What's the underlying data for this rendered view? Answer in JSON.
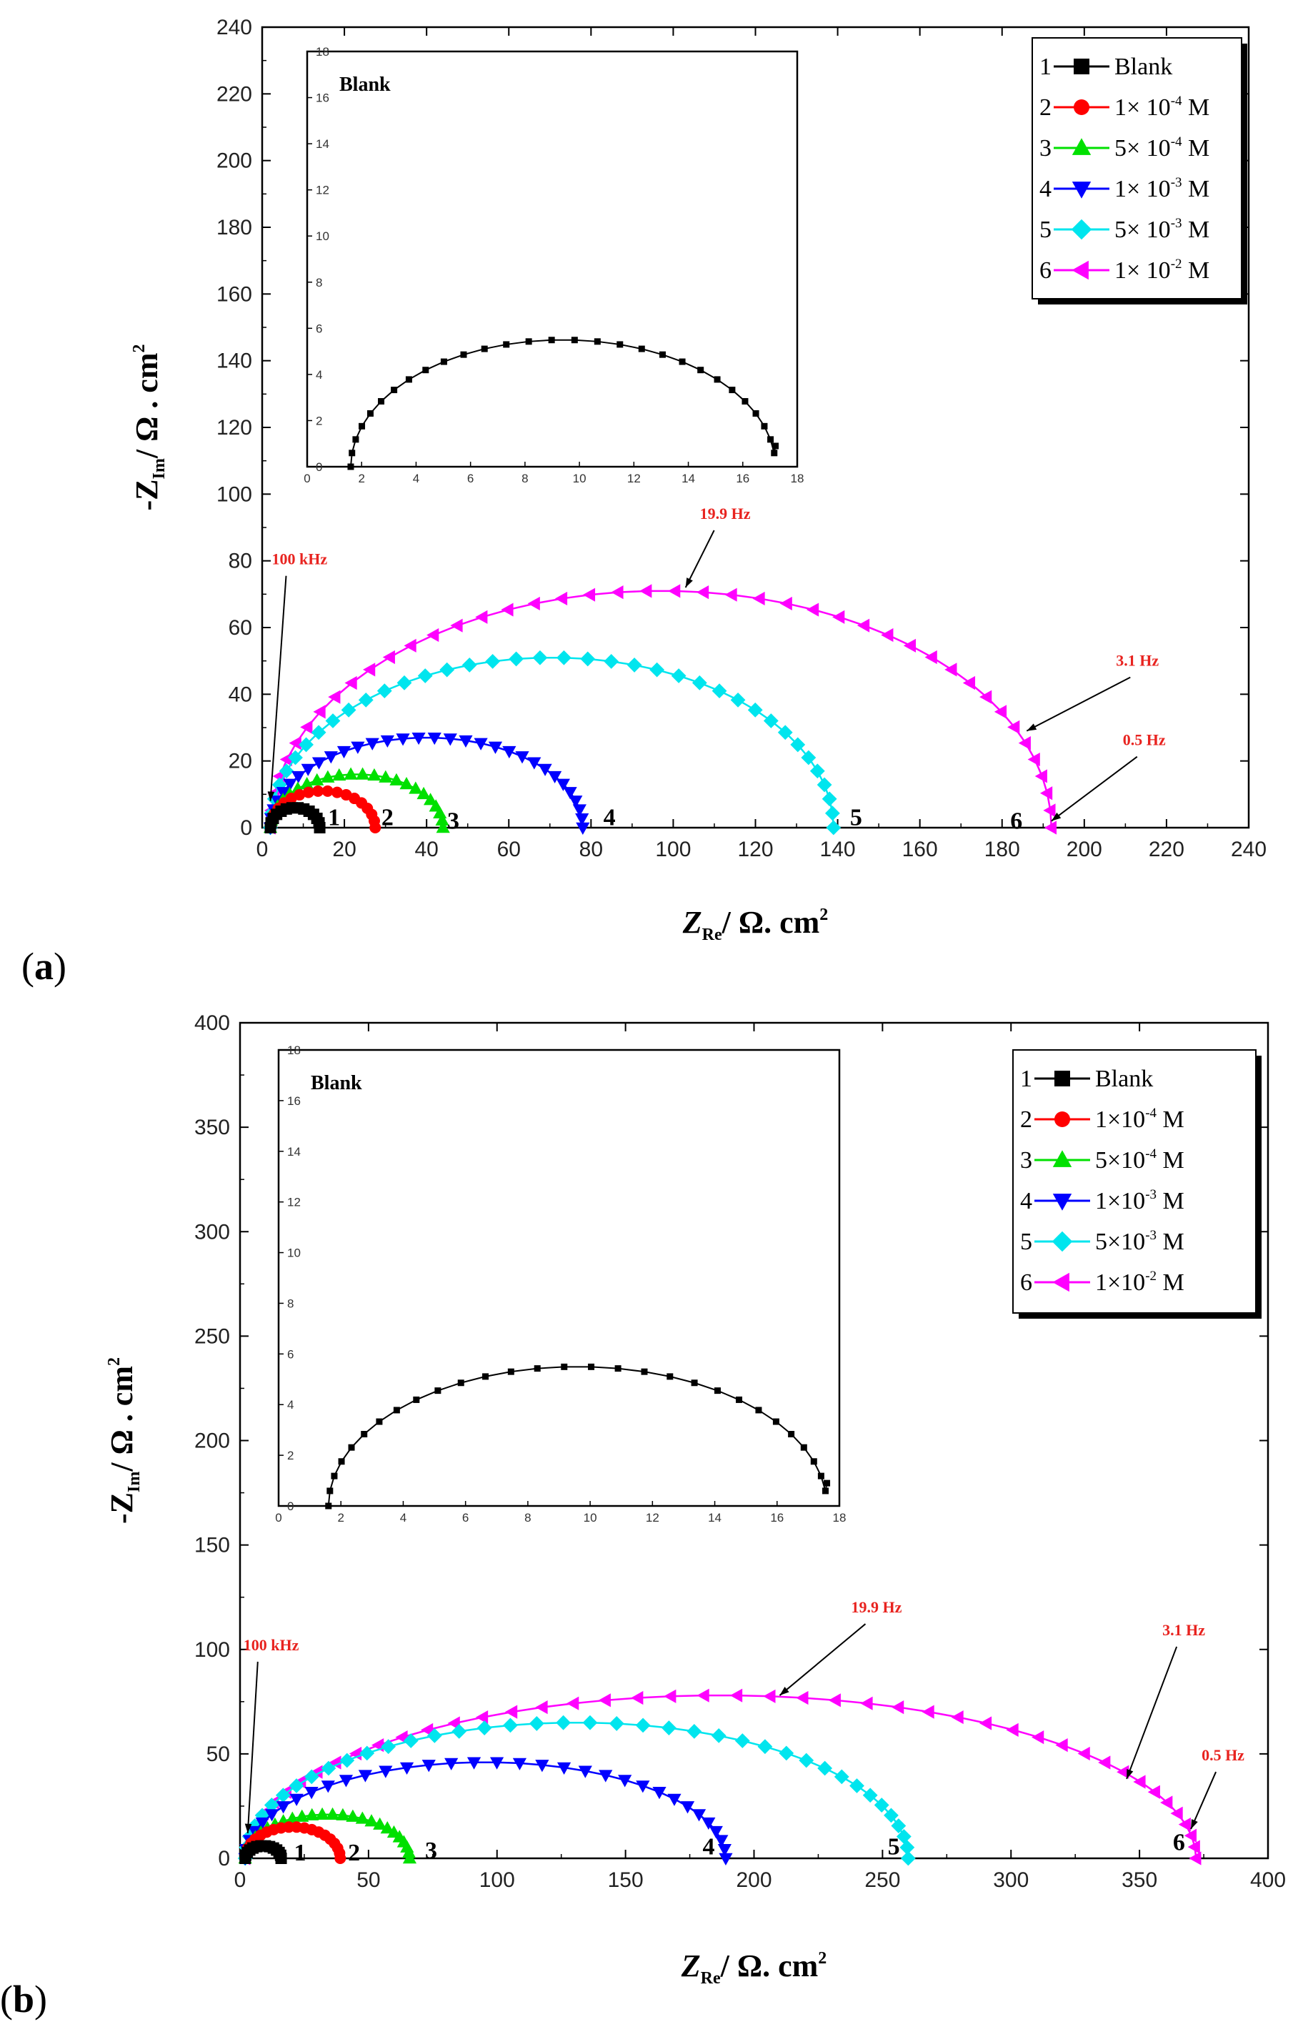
{
  "chart_data": [
    {
      "panel": "(a)",
      "panel_letter": "a",
      "type": "scatter",
      "subtype": "nyquist",
      "xlabel_main": "Z",
      "xlabel_sub": "Re",
      "xlabel_unit": "/ Ω. cm",
      "xlabel_pow": "2",
      "ylabel_main": "-Z",
      "ylabel_sub": "Im",
      "ylabel_unit": "/ Ω . cm",
      "ylabel_pow": "2",
      "xlim": [
        0,
        240
      ],
      "ylim": [
        0,
        240
      ],
      "xticks": [
        "0",
        "20",
        "40",
        "60",
        "80",
        "100",
        "120",
        "140",
        "160",
        "180",
        "200",
        "220",
        "240"
      ],
      "yticks": [
        "0",
        "20",
        "40",
        "60",
        "80",
        "100",
        "120",
        "140",
        "160",
        "180",
        "200",
        "220",
        "240"
      ],
      "series": [
        {
          "name": "Blank",
          "curve_label": "1",
          "color": "#000000",
          "marker": "square",
          "rs": 2,
          "rct": 12,
          "peak": 6,
          "n": 14
        },
        {
          "name": "1× 10⁻⁴ M",
          "curve_label": "2",
          "color": "#ff0000",
          "marker": "circle",
          "rs": 2,
          "rct": 25.5,
          "peak": 11,
          "n": 18
        },
        {
          "name": "5× 10⁻⁴ M",
          "curve_label": "3",
          "color": "#00e000",
          "marker": "triangle-up",
          "rs": 2,
          "rct": 42,
          "peak": 16,
          "n": 24
        },
        {
          "name": "1× 10⁻³ M",
          "curve_label": "4",
          "color": "#0000ff",
          "marker": "triangle-down",
          "rs": 2,
          "rct": 76,
          "peak": 27,
          "n": 32
        },
        {
          "name": "5× 10⁻³ M",
          "curve_label": "5",
          "color": "#00e5ee",
          "marker": "diamond",
          "rs": 2,
          "rct": 137,
          "peak": 51,
          "n": 38
        },
        {
          "name": "1× 10⁻² M",
          "curve_label": "6",
          "color": "#ff00ff",
          "marker": "triangle-left",
          "rs": 2,
          "rct": 190,
          "peak": 71,
          "n": 44
        }
      ],
      "legend": [
        {
          "num": "1",
          "text": "Blank",
          "exp": ""
        },
        {
          "num": "2",
          "text": "1× 10",
          "exp": "-4",
          "unit": " M"
        },
        {
          "num": "3",
          "text": "5× 10",
          "exp": "-4",
          "unit": " M"
        },
        {
          "num": "4",
          "text": "1× 10",
          "exp": "-3",
          "unit": " M"
        },
        {
          "num": "5",
          "text": "5× 10",
          "exp": "-3",
          "unit": " M"
        },
        {
          "num": "6",
          "text": "1× 10",
          "exp": "-2",
          "unit": " M"
        }
      ],
      "annotations": [
        {
          "text": "100 kHz",
          "x": 2,
          "y": 8
        },
        {
          "text": "19.9 Hz",
          "x": 103,
          "y": 72
        },
        {
          "text": "3.1 Hz",
          "x": 186,
          "y": 29
        },
        {
          "text": "0.5 Hz",
          "x": 192,
          "y": 2
        }
      ],
      "curve_label_positions": [
        {
          "label": "1",
          "x": 16,
          "y": 2
        },
        {
          "label": "2",
          "x": 29,
          "y": 2
        },
        {
          "label": "3",
          "x": 45,
          "y": 1
        },
        {
          "label": "4",
          "x": 83,
          "y": 2
        },
        {
          "label": "5",
          "x": 143,
          "y": 2
        },
        {
          "label": "6",
          "x": 182,
          "y": 1
        }
      ],
      "inset": {
        "title": "Blank",
        "xlim": [
          0,
          18
        ],
        "ylim": [
          0,
          18
        ],
        "xticks": [
          "0",
          "2",
          "4",
          "6",
          "8",
          "10",
          "12",
          "14",
          "16",
          "18"
        ],
        "yticks": [
          "0",
          "2",
          "4",
          "6",
          "8",
          "10",
          "12",
          "14",
          "16",
          "18"
        ],
        "series": {
          "rs": 1.6,
          "rct": 15.6,
          "peak": 5.5,
          "n": 30,
          "tail_y": 0.9
        }
      }
    },
    {
      "panel": "(b)",
      "panel_letter": "b",
      "type": "scatter",
      "subtype": "nyquist",
      "xlabel_main": "Z",
      "xlabel_sub": "Re",
      "xlabel_unit": "/ Ω. cm",
      "xlabel_pow": "2",
      "ylabel_main": "-Z",
      "ylabel_sub": "Im",
      "ylabel_unit": "/ Ω . cm",
      "ylabel_pow": "2",
      "xlim": [
        0,
        400
      ],
      "ylim": [
        0,
        400
      ],
      "xticks": [
        "0",
        "50",
        "100",
        "150",
        "200",
        "250",
        "300",
        "350",
        "400"
      ],
      "yticks": [
        "0",
        "50",
        "100",
        "150",
        "200",
        "250",
        "300",
        "350",
        "400"
      ],
      "series": [
        {
          "name": "Blank",
          "curve_label": "1",
          "color": "#000000",
          "marker": "square",
          "rs": 2,
          "rct": 14,
          "peak": 6,
          "n": 14
        },
        {
          "name": "1×10⁻⁴ M",
          "curve_label": "2",
          "color": "#ff0000",
          "marker": "circle",
          "rs": 2,
          "rct": 37,
          "peak": 15,
          "n": 20
        },
        {
          "name": "5×10⁻⁴ M",
          "curve_label": "3",
          "color": "#00e000",
          "marker": "triangle-up",
          "rs": 2,
          "rct": 64,
          "peak": 21,
          "n": 26
        },
        {
          "name": "1×10⁻³ M",
          "curve_label": "4",
          "color": "#0000ff",
          "marker": "triangle-down",
          "rs": 2,
          "rct": 187,
          "peak": 46,
          "n": 34
        },
        {
          "name": "5×10⁻³ M",
          "curve_label": "5",
          "color": "#00e5ee",
          "marker": "diamond",
          "rs": 2,
          "rct": 258,
          "peak": 65,
          "n": 40
        },
        {
          "name": "1×10⁻² M",
          "curve_label": "6",
          "color": "#ff00ff",
          "marker": "triangle-left",
          "rs": 2,
          "rct": 370,
          "peak": 78,
          "n": 46
        }
      ],
      "legend": [
        {
          "num": "1",
          "text": "Blank",
          "exp": ""
        },
        {
          "num": "2",
          "text": "1×10",
          "exp": "-4",
          "unit": " M"
        },
        {
          "num": "3",
          "text": "5×10",
          "exp": "-4",
          "unit": " M"
        },
        {
          "num": "4",
          "text": "1×10",
          "exp": "-3",
          "unit": " M"
        },
        {
          "num": "5",
          "text": "5×10",
          "exp": "-3",
          "unit": " M"
        },
        {
          "num": "6",
          "text": "1×10",
          "exp": "-2",
          "unit": " M"
        }
      ],
      "annotations": [
        {
          "text": "100 kHz",
          "x": 3,
          "y": 12
        },
        {
          "text": "19.9 Hz",
          "x": 210,
          "y": 78
        },
        {
          "text": "3.1 Hz",
          "x": 345,
          "y": 38
        },
        {
          "text": "0.5 Hz",
          "x": 370,
          "y": 14
        }
      ],
      "curve_label_positions": [
        {
          "label": "1",
          "x": 21,
          "y": 1
        },
        {
          "label": "2",
          "x": 42,
          "y": 1
        },
        {
          "label": "3",
          "x": 72,
          "y": 2
        },
        {
          "label": "4",
          "x": 180,
          "y": 4
        },
        {
          "label": "5",
          "x": 252,
          "y": 4
        },
        {
          "label": "6",
          "x": 363,
          "y": 6
        }
      ],
      "inset": {
        "title": "Blank",
        "xlim": [
          0,
          18
        ],
        "ylim": [
          0,
          18
        ],
        "xticks": [
          "0",
          "2",
          "4",
          "6",
          "8",
          "10",
          "12",
          "14",
          "16",
          "18"
        ],
        "yticks": [
          "0",
          "2",
          "4",
          "6",
          "8",
          "10",
          "12",
          "14",
          "16",
          "18"
        ],
        "series": {
          "rs": 1.6,
          "rct": 16.0,
          "peak": 5.5,
          "n": 30,
          "tail_y": 0.9
        }
      }
    }
  ]
}
